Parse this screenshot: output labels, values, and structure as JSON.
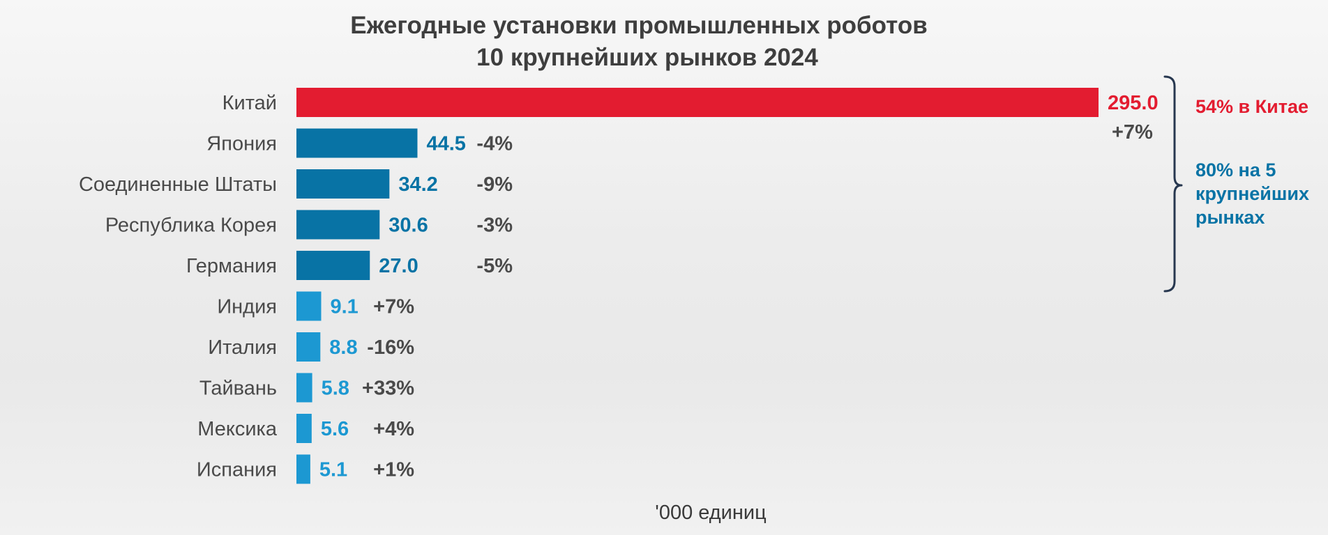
{
  "chart_data": {
    "type": "bar",
    "orientation": "horizontal",
    "title": "Ежегодные установки промышленных роботов",
    "subtitle": "10 крупнейших рынков 2024",
    "unit_label": "'000 единиц",
    "categories": [
      "Китай",
      "Япония",
      "Соединенные Штаты",
      "Республика Корея",
      "Германия",
      "Индия",
      "Италия",
      "Тайвань",
      "Мексика",
      "Испания"
    ],
    "values": [
      295.0,
      44.5,
      34.2,
      30.6,
      27.0,
      9.1,
      8.8,
      5.8,
      5.6,
      5.1
    ],
    "value_labels": [
      "295.0",
      "44.5",
      "34.2",
      "30.6",
      "27.0",
      "9.1",
      "8.8",
      "5.8",
      "5.6",
      "5.1"
    ],
    "changes": [
      "+7%",
      "-4%",
      "-9%",
      "-3%",
      "-5%",
      "+7%",
      "-16%",
      "+33%",
      "+4%",
      "+1%"
    ],
    "xlim": [
      0,
      295
    ],
    "grid": false,
    "legend": "none",
    "colors": {
      "top": "#e31c30",
      "top5": "#0873a5",
      "rest": "#1c98d2",
      "bracket": "#27374f",
      "text": "#4a4a4a",
      "title": "#3e3e3e"
    },
    "annotations": [
      {
        "text": "54% в Китае",
        "color": "#e31c30"
      },
      {
        "text_lines": [
          "80% на 5",
          "крупнейших",
          "рынках"
        ],
        "color": "#0873a5"
      }
    ]
  }
}
